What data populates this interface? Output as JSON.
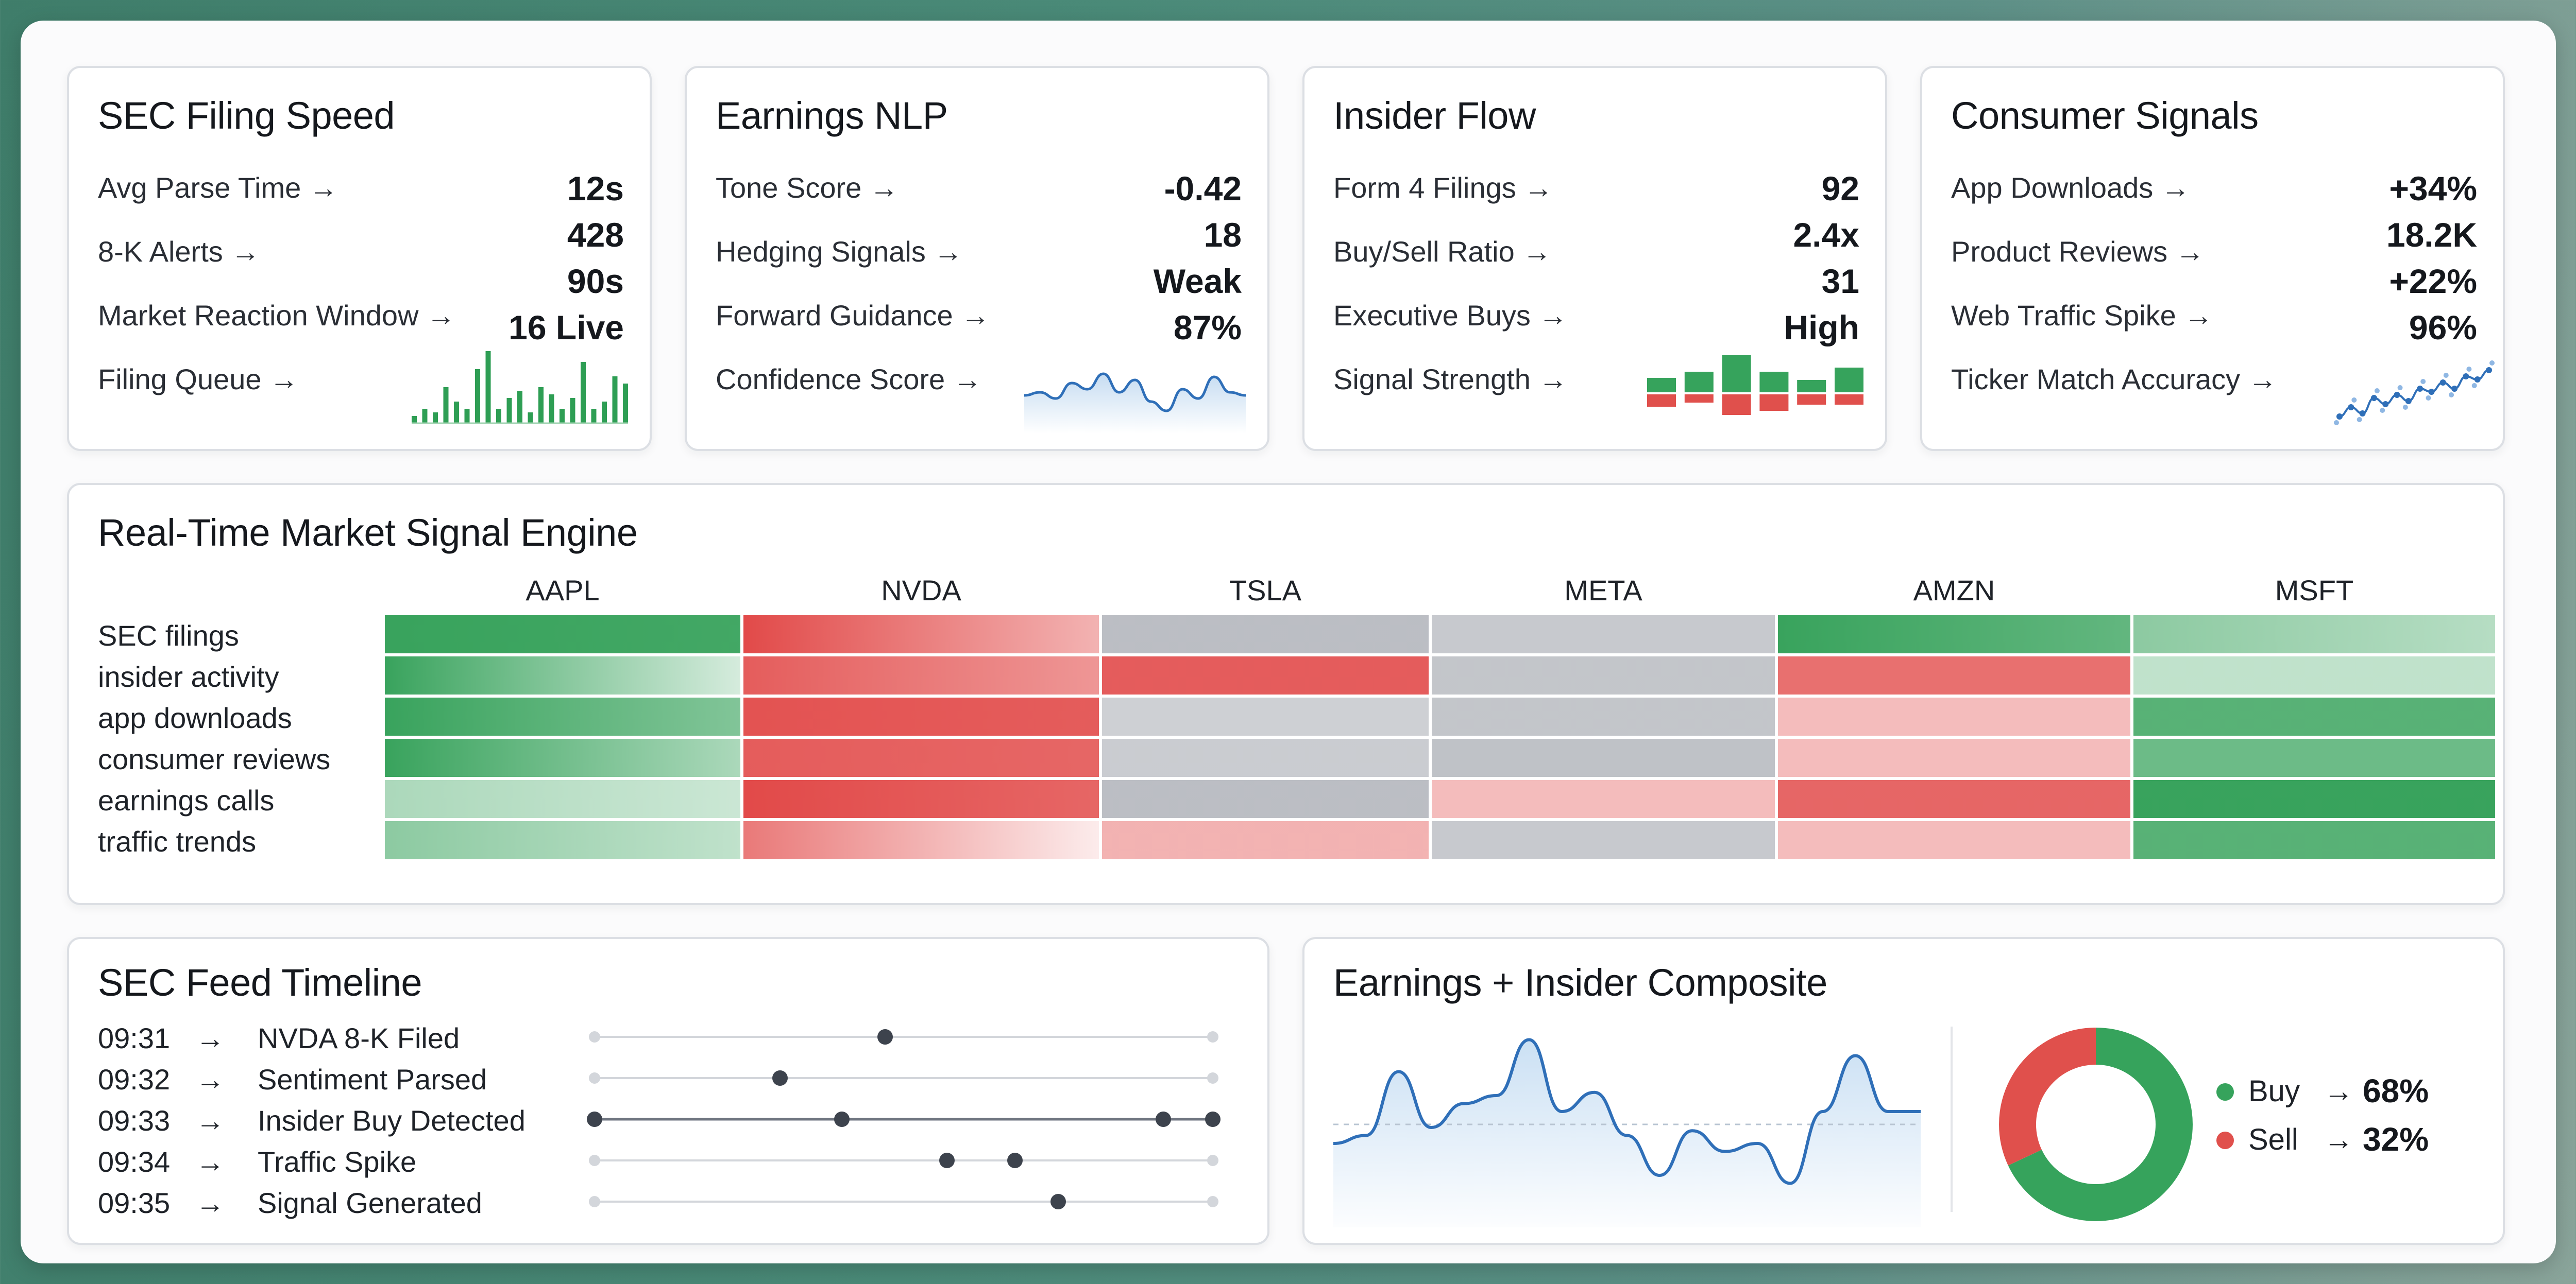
{
  "cards": [
    {
      "title": "SEC Filing Speed",
      "labels": [
        "Avg Parse Time →",
        "8-K Alerts →",
        "Market Reaction Window →",
        "Filing Queue →"
      ],
      "values": [
        "12s",
        "428",
        "90s",
        "16 Live"
      ]
    },
    {
      "title": "Earnings NLP",
      "labels": [
        "Tone Score →",
        "Hedging Signals →",
        "Forward Guidance →",
        "Confidence Score →"
      ],
      "values": [
        "-0.42",
        "18",
        "Weak",
        "87%"
      ]
    },
    {
      "title": "Insider Flow",
      "labels": [
        "Form 4 Filings →",
        "Buy/Sell Ratio →",
        "Executive Buys →",
        "Signal Strength →"
      ],
      "values": [
        "92",
        "2.4x",
        "31",
        "High"
      ]
    },
    {
      "title": "Consumer Signals",
      "labels": [
        "App Downloads →",
        "Product Reviews →",
        "Web Traffic Spike →",
        "Ticker Match Accuracy →"
      ],
      "values": [
        "+34%",
        "18.2K",
        "+22%",
        "96%"
      ]
    }
  ],
  "mini_charts": {
    "filing_queue_bars": [
      0.1,
      0.2,
      0.15,
      0.5,
      0.3,
      0.2,
      0.75,
      1.0,
      0.2,
      0.35,
      0.45,
      0.15,
      0.5,
      0.4,
      0.2,
      0.35,
      0.85,
      0.2,
      0.3,
      0.65,
      0.55
    ],
    "confidence_line": [
      0.45,
      0.5,
      0.4,
      0.65,
      0.55,
      0.8,
      0.5,
      0.7,
      0.35,
      0.2,
      0.55,
      0.4,
      0.75,
      0.5,
      0.45
    ],
    "signal_strength_bars": [
      {
        "up": 0.35,
        "down": 0.3
      },
      {
        "up": 0.5,
        "down": 0.2
      },
      {
        "up": 0.9,
        "down": 0.5
      },
      {
        "up": 0.5,
        "down": 0.4
      },
      {
        "up": 0.3,
        "down": 0.25
      },
      {
        "up": 0.6,
        "down": 0.25
      }
    ],
    "ticker_scatter": [
      0.15,
      0.3,
      0.2,
      0.45,
      0.35,
      0.5,
      0.4,
      0.6,
      0.55,
      0.7,
      0.6,
      0.8,
      0.75,
      0.9
    ]
  },
  "heatmap": {
    "title": "Real-Time Market Signal Engine",
    "columns": [
      "AAPL",
      "NVDA",
      "TSLA",
      "META",
      "AMZN",
      "MSFT"
    ],
    "rows": [
      "SEC filings",
      "insider activity",
      "app downloads",
      "consumer reviews",
      "earnings calls",
      "traffic trends"
    ],
    "colors": {
      "green": "#2e9e54",
      "red": "#e0403f",
      "gray": "#b4b7bd"
    },
    "cells": [
      [
        {
          "c": "green",
          "i": 0.95,
          "f": 0.9
        },
        {
          "c": "red",
          "i": 0.95,
          "f": 0.4
        },
        {
          "c": "gray",
          "i": 0.9,
          "f": 0.9
        },
        {
          "c": "gray",
          "i": 0.75,
          "f": 0.75
        },
        {
          "c": "green",
          "i": 0.95,
          "f": 0.75
        },
        {
          "c": "green",
          "i": 0.55,
          "f": 0.35
        }
      ],
      [
        {
          "c": "green",
          "i": 0.95,
          "f": 0.2
        },
        {
          "c": "red",
          "i": 0.85,
          "f": 0.55
        },
        {
          "c": "red",
          "i": 0.85,
          "f": 0.85
        },
        {
          "c": "gray",
          "i": 0.8,
          "f": 0.8
        },
        {
          "c": "red",
          "i": 0.75,
          "f": 0.75
        },
        {
          "c": "green",
          "i": 0.3,
          "f": 0.3
        }
      ],
      [
        {
          "c": "green",
          "i": 0.95,
          "f": 0.6
        },
        {
          "c": "red",
          "i": 0.9,
          "f": 0.85
        },
        {
          "c": "gray",
          "i": 0.65,
          "f": 0.65
        },
        {
          "c": "gray",
          "i": 0.8,
          "f": 0.8
        },
        {
          "c": "red",
          "i": 0.35,
          "f": 0.35
        },
        {
          "c": "green",
          "i": 0.8,
          "f": 0.8
        }
      ],
      [
        {
          "c": "green",
          "i": 0.95,
          "f": 0.4
        },
        {
          "c": "red",
          "i": 0.85,
          "f": 0.8
        },
        {
          "c": "gray",
          "i": 0.7,
          "f": 0.7
        },
        {
          "c": "gray",
          "i": 0.85,
          "f": 0.85
        },
        {
          "c": "red",
          "i": 0.35,
          "f": 0.35
        },
        {
          "c": "green",
          "i": 0.7,
          "f": 0.7
        }
      ],
      [
        {
          "c": "green",
          "i": 0.4,
          "f": 0.25
        },
        {
          "c": "red",
          "i": 0.95,
          "f": 0.8
        },
        {
          "c": "gray",
          "i": 0.9,
          "f": 0.9
        },
        {
          "c": "red",
          "i": 0.35,
          "f": 0.35
        },
        {
          "c": "red",
          "i": 0.8,
          "f": 0.8
        },
        {
          "c": "green",
          "i": 0.95,
          "f": 0.95
        }
      ],
      [
        {
          "c": "green",
          "i": 0.55,
          "f": 0.3
        },
        {
          "c": "red",
          "i": 0.7,
          "f": 0.1
        },
        {
          "c": "red",
          "i": 0.4,
          "f": 0.4
        },
        {
          "c": "gray",
          "i": 0.75,
          "f": 0.75
        },
        {
          "c": "red",
          "i": 0.35,
          "f": 0.35
        },
        {
          "c": "green",
          "i": 0.8,
          "f": 0.8
        }
      ]
    ]
  },
  "timeline": {
    "title": "SEC Feed Timeline",
    "events": [
      {
        "time": "09:31",
        "arrow": "→",
        "label": "NVDA 8-K Filed",
        "dots": [
          0.47
        ],
        "dark_line": false
      },
      {
        "time": "09:32",
        "arrow": "→",
        "label": "Sentiment Parsed",
        "dots": [
          0.3
        ],
        "dark_line": false
      },
      {
        "time": "09:33",
        "arrow": "→",
        "label": "Insider Buy Detected",
        "dots": [
          0.0,
          0.4,
          0.92,
          1.0
        ],
        "dark_line": true
      },
      {
        "time": "09:34",
        "arrow": "→",
        "label": "Traffic Spike",
        "dots": [
          0.57,
          0.68
        ],
        "dark_line": false
      },
      {
        "time": "09:35",
        "arrow": "→",
        "label": "Signal Generated",
        "dots": [
          0.75
        ],
        "dark_line": false
      }
    ]
  },
  "composite": {
    "title": "Earnings + Insider Composite",
    "line": [
      0.3,
      0.35,
      0.75,
      0.4,
      0.55,
      0.6,
      0.95,
      0.5,
      0.62,
      0.35,
      0.1,
      0.38,
      0.25,
      0.3,
      0.05,
      0.5,
      0.85,
      0.5,
      0.5
    ],
    "donut": [
      {
        "label": "Buy",
        "arrow": "→",
        "value": "68%",
        "fraction": 0.68,
        "color": "#36a35c"
      },
      {
        "label": "Sell",
        "arrow": "→",
        "value": "32%",
        "fraction": 0.32,
        "color": "#e0504c"
      }
    ]
  }
}
